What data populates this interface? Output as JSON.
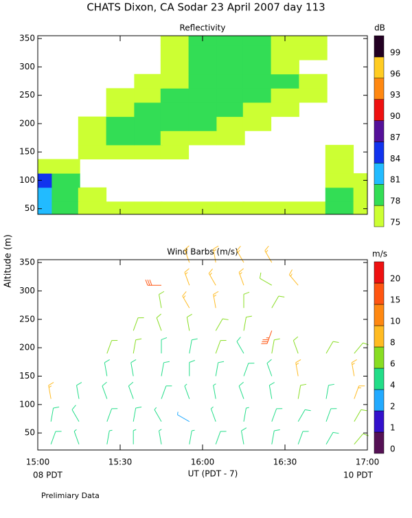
{
  "title": "CHATS Dixon, CA  Sodar  23 April 2007  day 113",
  "y_label": "Altitude (m)",
  "x_label": "UT (PDT - 7)",
  "left_note": "08 PDT",
  "right_note": "10 PDT",
  "footer": "Prelimiary Data",
  "chart_data": [
    {
      "type": "heatmap",
      "title": "Reflectivity",
      "units": "dB",
      "x": [
        15,
        15.17,
        15.33,
        15.5,
        15.67,
        15.83,
        16,
        16.17,
        16.33,
        16.5,
        16.67,
        16.83,
        17
      ],
      "y": [
        50,
        75,
        100,
        125,
        150,
        175,
        200,
        225,
        250,
        275,
        300,
        325,
        350
      ],
      "values": [
        [
          81,
          79,
          76,
          76,
          76,
          76,
          76,
          76,
          76,
          76,
          76,
          78,
          76
        ],
        [
          82,
          79,
          76,
          null,
          null,
          null,
          null,
          null,
          null,
          null,
          null,
          78,
          76
        ],
        [
          85,
          80,
          null,
          null,
          null,
          null,
          null,
          null,
          null,
          null,
          null,
          77,
          76
        ],
        [
          76,
          76,
          null,
          null,
          null,
          null,
          null,
          null,
          null,
          null,
          null,
          76,
          null
        ],
        [
          null,
          null,
          76,
          76,
          76,
          76,
          null,
          null,
          null,
          null,
          null,
          76,
          null
        ],
        [
          null,
          null,
          76,
          79,
          79,
          76,
          76,
          76,
          null,
          null,
          null,
          null,
          null
        ],
        [
          null,
          null,
          76,
          79,
          79,
          79,
          79,
          76,
          76,
          null,
          null,
          null,
          null
        ],
        [
          null,
          null,
          null,
          76,
          79,
          79,
          79,
          79,
          76,
          76,
          null,
          null,
          null
        ],
        [
          null,
          null,
          null,
          76,
          76,
          79,
          79,
          79,
          79,
          76,
          76,
          null,
          null
        ],
        [
          null,
          null,
          null,
          null,
          76,
          76,
          79,
          79,
          79,
          79,
          76,
          null,
          null
        ],
        [
          null,
          null,
          null,
          null,
          null,
          76,
          79,
          79,
          79,
          76,
          null,
          null,
          null
        ],
        [
          null,
          null,
          null,
          null,
          null,
          76,
          79,
          79,
          79,
          76,
          76,
          null,
          null
        ],
        [
          null,
          null,
          null,
          null,
          null,
          76,
          79,
          79,
          79,
          76,
          76,
          null,
          null
        ]
      ],
      "levels": [
        75,
        78,
        81,
        84,
        87,
        90,
        93,
        96,
        99
      ],
      "colors": [
        "#ccff33",
        "#33dd55",
        "#22bbff",
        "#1133ee",
        "#551199",
        "#ee1111",
        "#ff8811",
        "#ffcc22",
        "#220022"
      ],
      "xlim": [
        15,
        17
      ],
      "ylim": [
        40,
        355
      ],
      "yticks": [
        50,
        100,
        150,
        200,
        250,
        300,
        350
      ]
    },
    {
      "type": "barbs",
      "title": "Wind Barbs (m/s)",
      "units": "m/s",
      "x": [
        15.08,
        15.25,
        15.42,
        15.58,
        15.75,
        15.92,
        16.08,
        16.25,
        16.42,
        16.58,
        16.75,
        16.92
      ],
      "altitudes": [
        30,
        70,
        110,
        150,
        190,
        230,
        270,
        310,
        350
      ],
      "speed": [
        [
          5,
          5,
          8,
          null,
          null,
          null,
          null,
          null,
          null
        ],
        [
          4,
          5,
          5,
          null,
          null,
          null,
          null,
          null,
          null
        ],
        [
          4,
          5,
          5,
          5,
          7,
          null,
          null,
          null,
          null
        ],
        [
          4,
          5,
          5,
          5,
          6,
          7,
          null,
          null,
          null
        ],
        [
          4,
          4,
          5,
          5,
          5,
          6,
          7,
          16,
          null
        ],
        [
          4,
          3,
          4,
          5,
          5,
          6,
          8,
          9,
          9
        ],
        [
          5,
          4,
          4,
          5,
          6,
          7,
          8,
          9,
          9
        ],
        [
          5,
          4,
          5,
          5,
          5,
          6,
          7,
          9,
          9
        ],
        [
          5,
          5,
          5,
          5,
          6,
          18,
          7,
          7,
          9
        ],
        [
          5,
          5,
          7,
          8,
          7,
          null,
          null,
          9,
          null
        ],
        [
          5,
          5,
          5,
          null,
          6,
          null,
          null,
          null,
          null
        ],
        [
          6,
          7,
          8,
          8,
          6,
          null,
          null,
          null,
          null
        ]
      ],
      "direction": [
        [
          20,
          10,
          350,
          null,
          null,
          null,
          null,
          null,
          null
        ],
        [
          340,
          330,
          350,
          null,
          null,
          null,
          null,
          null,
          null
        ],
        [
          10,
          20,
          340,
          350,
          20,
          null,
          null,
          null,
          null
        ],
        [
          0,
          10,
          340,
          350,
          10,
          20,
          null,
          null,
          null
        ],
        [
          350,
          330,
          20,
          10,
          0,
          340,
          350,
          270,
          null
        ],
        [
          10,
          300,
          340,
          0,
          10,
          350,
          330,
          340,
          340
        ],
        [
          20,
          340,
          350,
          10,
          20,
          30,
          350,
          330,
          350
        ],
        [
          350,
          10,
          340,
          20,
          330,
          10,
          0,
          340,
          330
        ],
        [
          10,
          20,
          350,
          340,
          10,
          200,
          30,
          300,
          330
        ],
        [
          20,
          30,
          10,
          350,
          340,
          null,
          null,
          320,
          null
        ],
        [
          30,
          20,
          10,
          null,
          30,
          null,
          null,
          null,
          null
        ],
        [
          40,
          30,
          20,
          350,
          40,
          null,
          null,
          null,
          null
        ]
      ],
      "levels": [
        0,
        1,
        2,
        4,
        6,
        8,
        10,
        15,
        20
      ],
      "colors": [
        "#551155",
        "#3311cc",
        "#22aaff",
        "#22dd88",
        "#88dd22",
        "#ffbb22",
        "#ff8811",
        "#ff5511",
        "#ee1111"
      ],
      "xlim": [
        15,
        17
      ],
      "ylim": [
        20,
        355
      ],
      "yticks": [
        50,
        100,
        150,
        200,
        250,
        300,
        350
      ],
      "xticks": [
        {
          "value": 15,
          "label": "15:00"
        },
        {
          "value": 15.5,
          "label": "15:30"
        },
        {
          "value": 16,
          "label": "16:00"
        },
        {
          "value": 16.5,
          "label": "16:30"
        },
        {
          "value": 17,
          "label": "17:00"
        }
      ]
    }
  ]
}
